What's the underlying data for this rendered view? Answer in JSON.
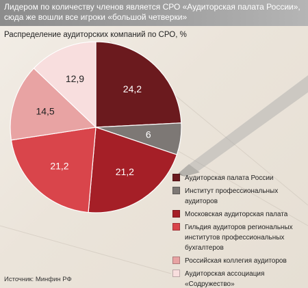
{
  "header": {
    "text": "Лидером по количеству членов является СРО «Аудиторская палата России», сюда же вошли все игроки «большой четверки»"
  },
  "source": "Источник: Минфин РФ",
  "colors": {
    "header_bg": "#9a9a9a",
    "slices": [
      "#6b1a1e",
      "#7d7875",
      "#a51f27",
      "#d9454b",
      "#e8a3a3",
      "#f8dede"
    ]
  },
  "chart_data": {
    "type": "pie",
    "title": "Распределение аудиторских компаний по СРО, %",
    "categories": [
      "Аудиторская палата России",
      "Институт профессиональных аудиторов",
      "Московская аудиторская палата",
      "Гильдия аудиторов региональных институтов профессиональных бухгалтеров",
      "Российская коллегия аудиторов",
      "Аудиторская ассоциация «Содружество»"
    ],
    "values": [
      24.2,
      6,
      21.2,
      21.2,
      14.5,
      12.9
    ],
    "labels": [
      "24,2",
      "6",
      "21,2",
      "21,2",
      "14,5",
      "12,9"
    ],
    "legend": [
      {
        "label": "Аудиторская палата России",
        "color": "#6b1a1e"
      },
      {
        "label": "Институт профессиональных аудиторов",
        "color": "#7d7875"
      },
      {
        "label": "Московская аудиторская палата",
        "color": "#a51f27"
      },
      {
        "label": "Гильдия аудиторов региональных институтов профессиональных бухгалтеров",
        "color": "#d9454b"
      },
      {
        "label": "Российская коллегия аудиторов",
        "color": "#e8a3a3"
      },
      {
        "label": "Аудиторская ассоциация «Содружество»",
        "color": "#f8dede"
      }
    ],
    "legend_position": "bottom-right"
  }
}
